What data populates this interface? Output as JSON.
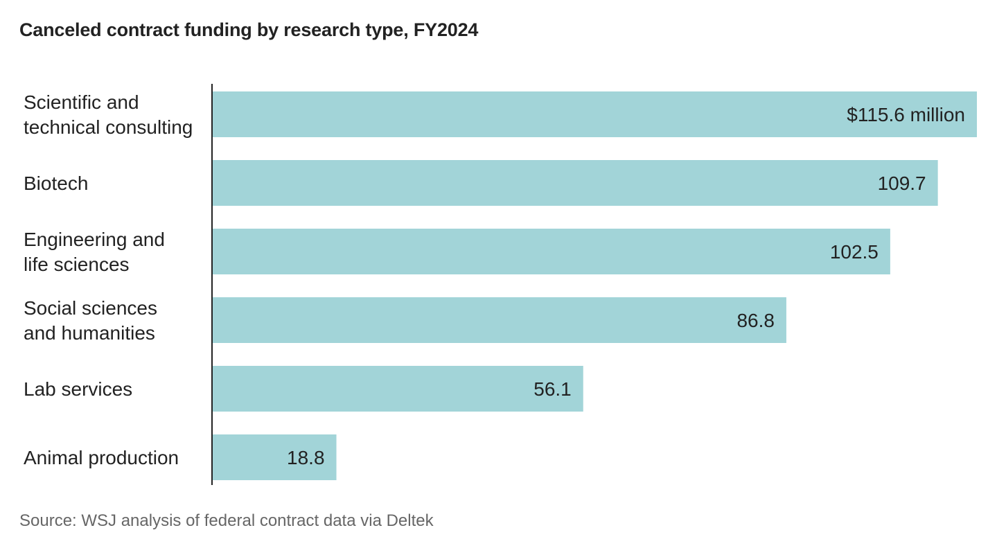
{
  "chart_data": {
    "type": "bar",
    "orientation": "horizontal",
    "title": "Canceled contract funding by research type, FY2024",
    "categories": [
      [
        "Scientific and",
        "technical consulting"
      ],
      [
        "Biotech"
      ],
      [
        "Engineering and",
        "life sciences"
      ],
      [
        "Social sciences",
        "and humanities"
      ],
      [
        "Lab services"
      ],
      [
        "Animal production"
      ]
    ],
    "values": [
      115.6,
      109.7,
      102.5,
      86.8,
      56.1,
      18.8
    ],
    "value_labels": [
      "$115.6 million",
      "109.7",
      "102.5",
      "86.8",
      "56.1",
      "18.8"
    ],
    "xlim": [
      0,
      115.6
    ],
    "grid": false,
    "bar_color": "#a2d4d8",
    "axis_color": "#222222",
    "source": "Source: WSJ analysis of federal contract data via Deltek"
  }
}
